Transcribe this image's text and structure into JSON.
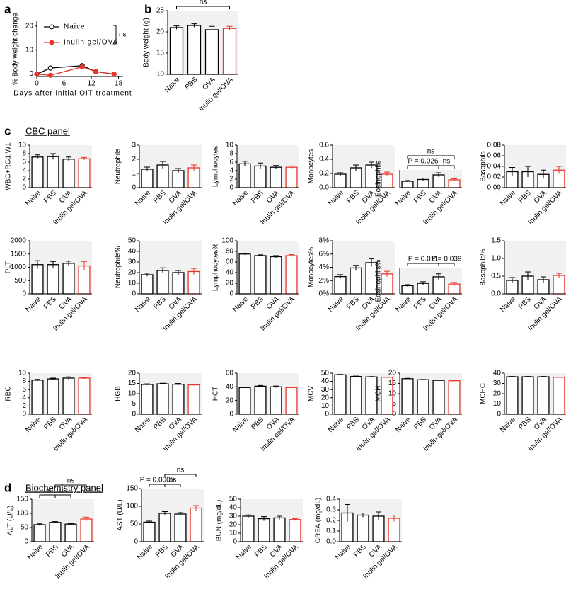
{
  "labels": {
    "a": "a",
    "b": "b",
    "c": "c",
    "d": "d",
    "cbc": "CBC panel",
    "bio": "Biochemistry panel"
  },
  "chart_data": [
    {
      "type": "line",
      "xlabel": "Days after initial OIT treatment",
      "ylabel": "% Body weight change",
      "xlim": [
        0,
        19
      ],
      "xticks": [
        0,
        6,
        12,
        18
      ],
      "ylim": [
        -1,
        22
      ],
      "yticks": [
        0,
        10,
        20
      ],
      "series": [
        {
          "name": "Naive",
          "color": "#000000",
          "x": [
            0,
            3,
            10,
            13,
            17
          ],
          "values": [
            0,
            2.5,
            3.5,
            1,
            0
          ]
        },
        {
          "name": "Inulin gel/OVA",
          "color": "#e8352a",
          "x": [
            0,
            3,
            10,
            13,
            17
          ],
          "values": [
            0,
            -0.5,
            3,
            1,
            0
          ]
        }
      ],
      "annotations": [
        {
          "text": "ns"
        }
      ]
    },
    {
      "type": "bar",
      "ylabel": "Body weight (g)",
      "categories": [
        "Naive",
        "PBS",
        "OVA",
        "Inulin gel/OVA"
      ],
      "values": [
        21,
        21.5,
        20.5,
        20.8
      ],
      "errors": [
        0.4,
        0.4,
        0.8,
        0.5
      ],
      "colors": [
        "#000000",
        "#000000",
        "#000000",
        "#e8352a"
      ],
      "ylim": [
        10,
        25
      ],
      "yticks": [
        10,
        15,
        20,
        25
      ],
      "annotations": [
        {
          "text": "ns",
          "between": [
            "Naive",
            "Inulin gel/OVA"
          ]
        }
      ]
    },
    {
      "type": "bar",
      "ylabel": "WBC+RG1:W1",
      "categories": [
        "Naive",
        "PBS",
        "OVA",
        "Inulin gel/OVA"
      ],
      "values": [
        7.2,
        7.3,
        6.7,
        6.8
      ],
      "errors": [
        0.5,
        0.7,
        0.5,
        0.3
      ],
      "colors": [
        "#000000",
        "#000000",
        "#000000",
        "#e8352a"
      ],
      "ylim": [
        0,
        10
      ],
      "yticks": [
        0,
        2,
        4,
        6,
        8,
        10
      ]
    },
    {
      "type": "bar",
      "ylabel": "Neutrophils",
      "categories": [
        "Naive",
        "PBS",
        "OVA",
        "Inulin gel/OVA"
      ],
      "values": [
        1.3,
        1.6,
        1.2,
        1.4
      ],
      "errors": [
        0.15,
        0.25,
        0.15,
        0.2
      ],
      "colors": [
        "#000000",
        "#000000",
        "#000000",
        "#e8352a"
      ],
      "ylim": [
        0,
        3
      ],
      "yticks": [
        0,
        1,
        2,
        3
      ]
    },
    {
      "type": "bar",
      "ylabel": "Lymphocytes",
      "categories": [
        "Naive",
        "PBS",
        "OVA",
        "Inulin gel/OVA"
      ],
      "values": [
        5.6,
        5.1,
        4.8,
        4.8
      ],
      "errors": [
        0.6,
        0.7,
        0.4,
        0.3
      ],
      "colors": [
        "#000000",
        "#000000",
        "#000000",
        "#e8352a"
      ],
      "ylim": [
        0,
        10
      ],
      "yticks": [
        0,
        2,
        4,
        6,
        8,
        10
      ]
    },
    {
      "type": "bar",
      "ylabel": "Monocytes",
      "categories": [
        "Naive",
        "PBS",
        "OVA",
        "Inulin gel/OVA"
      ],
      "values": [
        0.19,
        0.28,
        0.32,
        0.19
      ],
      "errors": [
        0.02,
        0.04,
        0.04,
        0.03
      ],
      "colors": [
        "#000000",
        "#000000",
        "#000000",
        "#e8352a"
      ],
      "ylim": [
        0,
        0.6
      ],
      "yticks": [
        {
          "value": 0,
          "label": "0.0"
        },
        0.2,
        0.4,
        0.6
      ]
    },
    {
      "type": "bar",
      "ylabel": "Eosinophils",
      "categories": [
        "Naive",
        "PBS",
        "OVA",
        "Inulin gel/OVA"
      ],
      "values": [
        0.18,
        0.23,
        0.36,
        0.22
      ],
      "errors": [
        0.02,
        0.04,
        0.06,
        0.03
      ],
      "colors": [
        "#000000",
        "#000000",
        "#000000",
        "#e8352a"
      ],
      "ylim": [
        0,
        0.5
      ],
      "yticks": [],
      "annotations": [
        {
          "text": "P = 0.026",
          "between": [
            "Naive",
            "OVA"
          ]
        },
        {
          "text": "ns",
          "between": [
            "OVA",
            "Inulin gel/OVA"
          ]
        },
        {
          "text": "ns",
          "between": [
            "Naive",
            "Inulin gel/OVA"
          ]
        }
      ]
    },
    {
      "type": "bar",
      "ylabel": "Basophils",
      "categories": [
        "Naive",
        "PBS",
        "OVA",
        "Inulin gel/OVA"
      ],
      "values": [
        0.03,
        0.03,
        0.025,
        0.033
      ],
      "errors": [
        0.008,
        0.01,
        0.008,
        0.007
      ],
      "colors": [
        "#000000",
        "#000000",
        "#000000",
        "#e8352a"
      ],
      "ylim": [
        0,
        0.08
      ],
      "yticks": [
        {
          "value": 0,
          "label": "0.00"
        },
        0.02,
        0.04,
        0.06,
        0.08
      ]
    },
    {
      "type": "bar",
      "ylabel": "PLT",
      "categories": [
        "Naive",
        "PBS",
        "OVA",
        "Inulin gel/OVA"
      ],
      "values": [
        1100,
        1100,
        1150,
        1050
      ],
      "errors": [
        150,
        120,
        80,
        170
      ],
      "colors": [
        "#000000",
        "#000000",
        "#000000",
        "#e8352a"
      ],
      "ylim": [
        0,
        2000
      ],
      "yticks": [
        0,
        500,
        1000,
        1500,
        2000
      ]
    },
    {
      "type": "bar",
      "ylabel": "Neutrophils%",
      "categories": [
        "Naive",
        "PBS",
        "OVA",
        "Inulin gel/OVA"
      ],
      "values": [
        18,
        22,
        20,
        21
      ],
      "errors": [
        1.5,
        2.5,
        2,
        3
      ],
      "colors": [
        "#000000",
        "#000000",
        "#000000",
        "#e8352a"
      ],
      "ylim": [
        0,
        50
      ],
      "yticks": [
        0,
        10,
        20,
        30,
        40,
        50
      ]
    },
    {
      "type": "bar",
      "ylabel": "Lymphocytes%",
      "categories": [
        "Naive",
        "PBS",
        "OVA",
        "Inulin gel/OVA"
      ],
      "values": [
        75,
        72,
        70,
        72
      ],
      "errors": [
        1.5,
        1.5,
        2,
        2
      ],
      "colors": [
        "#000000",
        "#000000",
        "#000000",
        "#e8352a"
      ],
      "ylim": [
        0,
        100
      ],
      "yticks": [
        0,
        20,
        40,
        60,
        80,
        100
      ]
    },
    {
      "type": "bar",
      "ylabel": "Monocytes%",
      "categories": [
        "Naive",
        "PBS",
        "OVA",
        "Inulin gel/OVA"
      ],
      "values": [
        2.6,
        3.9,
        4.7,
        3.0
      ],
      "errors": [
        0.3,
        0.4,
        0.6,
        0.4
      ],
      "colors": [
        "#000000",
        "#000000",
        "#000000",
        "#e8352a"
      ],
      "ylim": [
        0,
        8
      ],
      "yticks": [
        {
          "value": 0,
          "label": "0%"
        },
        {
          "value": 2,
          "label": "2%"
        },
        {
          "value": 4,
          "label": "4%"
        },
        {
          "value": 6,
          "label": "6%"
        },
        {
          "value": 8,
          "label": "8%"
        }
      ]
    },
    {
      "type": "bar",
      "ylabel": "Eosinophils%",
      "categories": [
        "Naive",
        "PBS",
        "OVA",
        "Inulin gel/OVA"
      ],
      "values": [
        2.5,
        3.2,
        5.2,
        3.0
      ],
      "errors": [
        0.3,
        0.5,
        0.9,
        0.5
      ],
      "colors": [
        "#000000",
        "#000000",
        "#000000",
        "#e8352a"
      ],
      "ylim": [
        0,
        8
      ],
      "yticks": [],
      "annotations": [
        {
          "text": "P = 0.039",
          "between": [
            "OVA",
            "Inulin gel/OVA"
          ]
        },
        {
          "text": "P = 0.011",
          "between": [
            "Naive",
            "OVA"
          ]
        }
      ]
    },
    {
      "type": "bar",
      "ylabel": "Basophils%",
      "categories": [
        "Naive",
        "PBS",
        "OVA",
        "Inulin gel/OVA"
      ],
      "values": [
        0.38,
        0.5,
        0.4,
        0.52
      ],
      "errors": [
        0.08,
        0.12,
        0.08,
        0.06
      ],
      "colors": [
        "#000000",
        "#000000",
        "#000000",
        "#e8352a"
      ],
      "ylim": [
        0,
        1.5
      ],
      "yticks": [
        {
          "value": 0,
          "label": "0.0"
        },
        0.5,
        {
          "value": 1,
          "label": "1.0"
        },
        1.5
      ]
    },
    {
      "type": "bar",
      "ylabel": "RBC",
      "categories": [
        "Naive",
        "PBS",
        "OVA",
        "Inulin gel/OVA"
      ],
      "values": [
        8.3,
        8.6,
        8.8,
        8.8
      ],
      "errors": [
        0.2,
        0.2,
        0.3,
        0.15
      ],
      "colors": [
        "#000000",
        "#000000",
        "#000000",
        "#e8352a"
      ],
      "ylim": [
        0,
        10
      ],
      "yticks": [
        0,
        2,
        4,
        6,
        8,
        10
      ]
    },
    {
      "type": "bar",
      "ylabel": "HGB",
      "categories": [
        "Naive",
        "PBS",
        "OVA",
        "Inulin gel/OVA"
      ],
      "values": [
        14.5,
        14.8,
        14.6,
        14.3
      ],
      "errors": [
        0.3,
        0.3,
        0.4,
        0.3
      ],
      "colors": [
        "#000000",
        "#000000",
        "#000000",
        "#e8352a"
      ],
      "ylim": [
        0,
        20
      ],
      "yticks": [
        0,
        5,
        10,
        15,
        20
      ]
    },
    {
      "type": "bar",
      "ylabel": "HCT",
      "categories": [
        "Naive",
        "PBS",
        "OVA",
        "Inulin gel/OVA"
      ],
      "values": [
        39,
        41,
        40,
        39
      ],
      "errors": [
        0.8,
        1,
        1.2,
        0.8
      ],
      "colors": [
        "#000000",
        "#000000",
        "#000000",
        "#e8352a"
      ],
      "ylim": [
        0,
        60
      ],
      "yticks": [
        0,
        20,
        40,
        60
      ]
    },
    {
      "type": "bar",
      "ylabel": "MCV",
      "categories": [
        "Naive",
        "PBS",
        "OVA",
        "Inulin gel/OVA"
      ],
      "values": [
        48,
        46,
        45.5,
        45
      ],
      "errors": [
        0.5,
        0.4,
        0.4,
        0.3
      ],
      "colors": [
        "#000000",
        "#000000",
        "#000000",
        "#e8352a"
      ],
      "ylim": [
        0,
        50
      ],
      "yticks": [
        0,
        10,
        20,
        30,
        40,
        50
      ]
    },
    {
      "type": "bar",
      "ylabel": "MCH",
      "categories": [
        "Naive",
        "PBS",
        "OVA",
        "Inulin gel/OVA"
      ],
      "values": [
        17.3,
        16.8,
        16.5,
        16.3
      ],
      "errors": [
        0.2,
        0.15,
        0.15,
        0.15
      ],
      "colors": [
        "#000000",
        "#000000",
        "#000000",
        "#e8352a"
      ],
      "ylim": [
        0,
        20
      ],
      "yticks": [
        0,
        5,
        10,
        15,
        20
      ]
    },
    {
      "type": "bar",
      "ylabel": "MCHC",
      "categories": [
        "Naive",
        "PBS",
        "OVA",
        "Inulin gel/OVA"
      ],
      "values": [
        36.5,
        36.5,
        36.5,
        36
      ],
      "errors": [
        0.3,
        0.3,
        0.3,
        0.2
      ],
      "colors": [
        "#000000",
        "#000000",
        "#000000",
        "#e8352a"
      ],
      "ylim": [
        0,
        40
      ],
      "yticks": [
        0,
        10,
        20,
        30,
        40
      ]
    },
    {
      "type": "bar",
      "ylabel": "ALT (U/L)",
      "categories": [
        "Naive",
        "PBS",
        "OVA",
        "Inulin gel/OVA"
      ],
      "values": [
        60,
        68,
        62,
        80
      ],
      "errors": [
        3,
        3,
        3,
        7
      ],
      "colors": [
        "#000000",
        "#000000",
        "#000000",
        "#e8352a"
      ],
      "ylim": [
        0,
        150
      ],
      "yticks": [
        0,
        50,
        100,
        150
      ],
      "annotations": [
        {
          "text": "ns",
          "between": [
            "Naive",
            "PBS"
          ]
        },
        {
          "text": "ns",
          "between": [
            "PBS",
            "OVA"
          ]
        },
        {
          "text": "ns",
          "between": [
            "PBS",
            "Inulin gel/OVA"
          ]
        }
      ]
    },
    {
      "type": "bar",
      "ylabel": "AST (U/L)",
      "categories": [
        "Naive",
        "PBS",
        "OVA",
        "Inulin gel/OVA"
      ],
      "values": [
        55,
        80,
        78,
        95
      ],
      "errors": [
        3,
        5,
        4,
        7
      ],
      "colors": [
        "#000000",
        "#000000",
        "#000000",
        "#e8352a"
      ],
      "ylim": [
        0,
        150
      ],
      "yticks": [
        0,
        50,
        100,
        150
      ],
      "annotations": [
        {
          "text": "ns",
          "between": [
            "PBS",
            "OVA"
          ]
        },
        {
          "text": "ns",
          "between": [
            "PBS",
            "Inulin gel/OVA"
          ]
        },
        {
          "text": "P = 0.0005",
          "between": [
            "Naive",
            "PBS"
          ]
        }
      ]
    },
    {
      "type": "bar",
      "ylabel": "BUN (mg/dL)",
      "categories": [
        "Naive",
        "PBS",
        "OVA",
        "Inulin gel/OVA"
      ],
      "values": [
        30,
        27,
        28,
        26
      ],
      "errors": [
        1.5,
        2.5,
        2,
        1.2
      ],
      "colors": [
        "#000000",
        "#000000",
        "#000000",
        "#e8352a"
      ],
      "ylim": [
        0,
        50
      ],
      "yticks": [
        0,
        10,
        20,
        30,
        40,
        50
      ]
    },
    {
      "type": "bar",
      "ylabel": "CREA (mg/dL)",
      "categories": [
        "Naive",
        "PBS",
        "OVA",
        "Inulin gel/OVA"
      ],
      "values": [
        0.27,
        0.25,
        0.24,
        0.22
      ],
      "errors": [
        0.08,
        0.02,
        0.04,
        0.03
      ],
      "colors": [
        "#000000",
        "#000000",
        "#000000",
        "#e8352a"
      ],
      "ylim": [
        0,
        0.4
      ],
      "yticks": [
        {
          "value": 0,
          "label": "0.0"
        },
        0.1,
        0.2,
        0.3,
        0.4
      ]
    }
  ]
}
